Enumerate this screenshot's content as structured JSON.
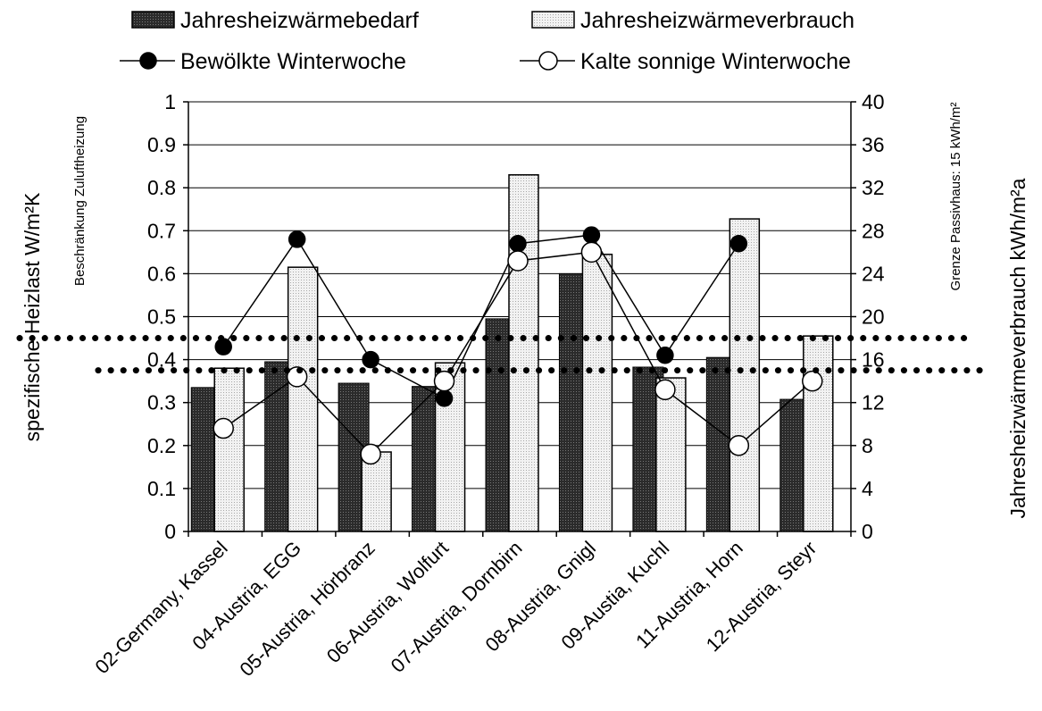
{
  "chart_data": {
    "type": "bar",
    "categories": [
      "02-Germany, Kassel",
      "04-Austria, EGG",
      "05-Austria, Hörbranz",
      "06-Austria, Wolfurt",
      "07-Austria, Dornbirn",
      "08-Austria, Gnigl",
      "09-Austia, Kuchl",
      "11-Austria, Horn",
      "12-Austria, Steyr"
    ],
    "series": [
      {
        "name": "Jahresheizwärmebedarf",
        "kind": "bar",
        "axis": "right",
        "color": "#2e2e2e",
        "values": [
          13.4,
          15.8,
          13.8,
          13.5,
          19.8,
          24.0,
          15.3,
          16.2,
          12.3
        ]
      },
      {
        "name": "Jahresheizwärmeverbrauch",
        "kind": "bar",
        "axis": "right",
        "color": "#e8e8e8",
        "values": [
          15.2,
          24.6,
          7.4,
          15.7,
          33.2,
          25.8,
          14.3,
          29.1,
          18.2
        ]
      },
      {
        "name": "Bewölkte Winterwoche",
        "kind": "line",
        "axis": "left",
        "marker": "filled-circle",
        "values": [
          0.43,
          0.68,
          0.4,
          0.31,
          0.67,
          0.69,
          0.41,
          0.67,
          null
        ]
      },
      {
        "name": "Kalte sonnige Winterwoche",
        "kind": "line",
        "axis": "left",
        "marker": "open-circle",
        "values": [
          0.24,
          0.36,
          0.18,
          0.35,
          0.63,
          0.65,
          0.33,
          0.2,
          0.35
        ]
      }
    ],
    "ylabel": "spezifische Heizlast  W/m²K",
    "y2label": "Jahresheizwärmeverbrauch   kWh/m²a",
    "ylim": [
      0,
      1
    ],
    "yticks": [
      "0",
      "0.1",
      "0.2",
      "0.3",
      "0.4",
      "0.5",
      "0.6",
      "0.7",
      "0.8",
      "0.9",
      "1"
    ],
    "y2lim": [
      0,
      40
    ],
    "y2ticks": [
      "0",
      "4",
      "8",
      "12",
      "16",
      "20",
      "24",
      "28",
      "32",
      "36",
      "40"
    ],
    "grid": true,
    "legend_position": "top",
    "reference_lines": [
      {
        "label": "Beschränkung Zuluftheizung",
        "value_left": 0.45,
        "style": "dotted"
      },
      {
        "label": "Grenze Passivhaus: 15 kWh/m²",
        "value_right": 15,
        "style": "dotted"
      }
    ]
  }
}
